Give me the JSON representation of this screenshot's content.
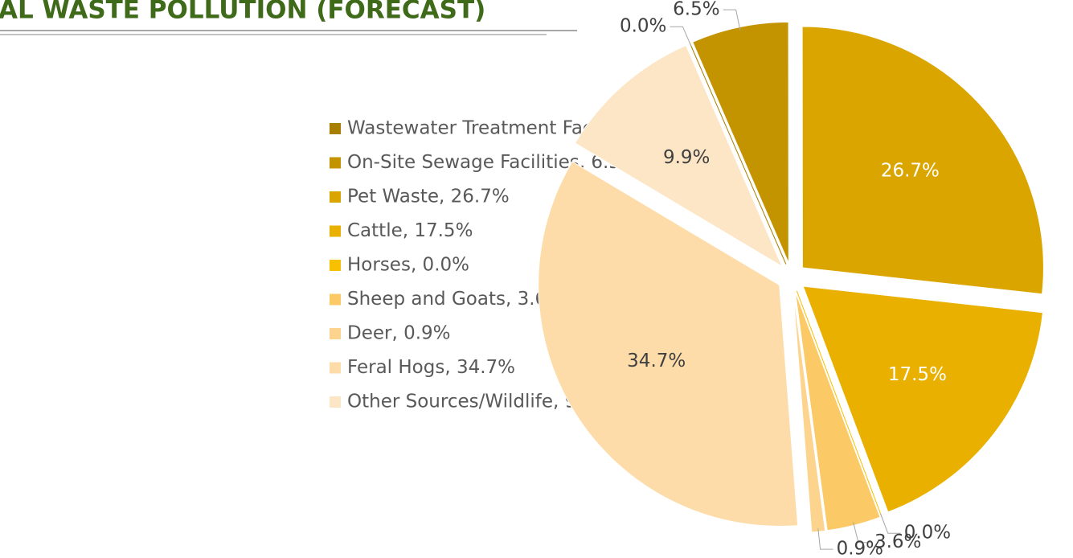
{
  "chart_data": {
    "type": "pie",
    "title": "AL WASTE POLLUTION (FORECAST)",
    "categories": [
      "Wastewater Treatment Facilities",
      "On-Site Sewage Facilities",
      "Pet Waste",
      "Cattle",
      "Horses",
      "Sheep and Goats",
      "Deer",
      "Feral Hogs",
      "Other Sources/Wildlife"
    ],
    "values": [
      0.0,
      6.5,
      26.7,
      17.5,
      0.0,
      3.6,
      0.9,
      34.7,
      9.9
    ],
    "value_labels": [
      "0.0%",
      "6.5%",
      "26.7%",
      "17.5%",
      "0.0%",
      "3.6%",
      "0.9%",
      "34.7%",
      "9.9%"
    ],
    "legend_labels": [
      "Wastewater Treatment Facilities, 0.0%",
      "On-Site Sewage Facilities, 6.5%",
      "Pet Waste, 26.7%",
      "Cattle, 17.5%",
      "Horses, 0.0%",
      "Sheep and Goats, 3.6%",
      "Deer, 0.9%",
      "Feral Hogs, 34.7%",
      "Other Sources/Wildlife, 9.9%"
    ],
    "colors": [
      "#a87e00",
      "#c49300",
      "#dba500",
      "#e9b000",
      "#f7c000",
      "#fbc965",
      "#fcd48e",
      "#fddca9",
      "#fde6c6"
    ],
    "legend": "left"
  }
}
